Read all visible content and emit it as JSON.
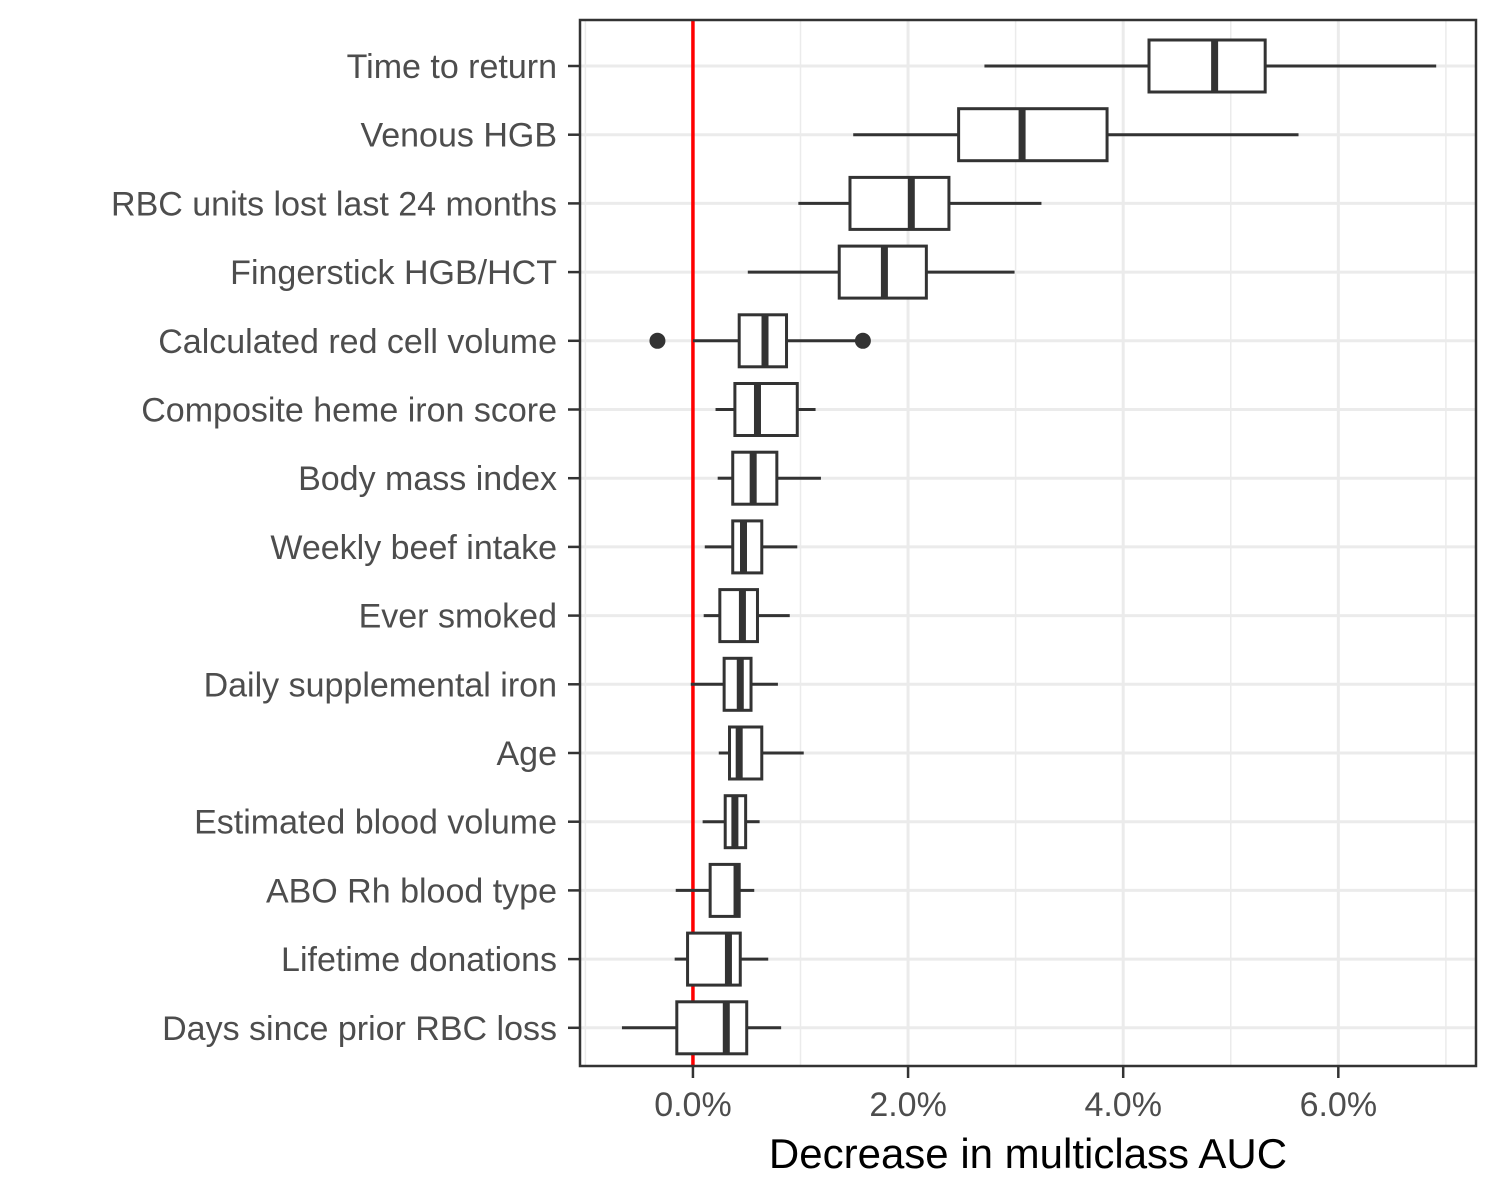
{
  "chart_data": {
    "type": "boxplot",
    "orientation": "horizontal",
    "xlabel": "Decrease in multiclass AUC",
    "ylabel": "",
    "xlim": [
      -0.0105,
      0.0728
    ],
    "x_ticks": [
      0.0,
      0.02,
      0.04,
      0.06
    ],
    "x_tick_labels": [
      "0.0%",
      "2.0%",
      "4.0%",
      "6.0%"
    ],
    "x_minor_ticks": [
      -0.01,
      0.01,
      0.03,
      0.05,
      0.07
    ],
    "reference_line": {
      "x": 0.0,
      "color": "#ff0000"
    },
    "grid": true,
    "series": [
      {
        "category": "Time to return",
        "whisker_low": 0.0271,
        "q1": 0.0424,
        "median": 0.0485,
        "q3": 0.0532,
        "whisker_high": 0.0691,
        "outliers": []
      },
      {
        "category": "Venous HGB",
        "whisker_low": 0.0149,
        "q1": 0.0247,
        "median": 0.0306,
        "q3": 0.0385,
        "whisker_high": 0.0563,
        "outliers": []
      },
      {
        "category": "RBC units lost last 24 months",
        "whisker_low": 0.0098,
        "q1": 0.0146,
        "median": 0.0203,
        "q3": 0.0238,
        "whisker_high": 0.0324,
        "outliers": []
      },
      {
        "category": "Fingerstick HGB/HCT",
        "whisker_low": 0.0051,
        "q1": 0.0136,
        "median": 0.0178,
        "q3": 0.0217,
        "whisker_high": 0.0299,
        "outliers": []
      },
      {
        "category": "Calculated red cell volume",
        "whisker_low": 0.0,
        "q1": 0.0043,
        "median": 0.0067,
        "q3": 0.0087,
        "whisker_high": 0.0158,
        "outliers": [
          -0.0033,
          0.0158
        ]
      },
      {
        "category": "Composite heme iron score",
        "whisker_low": 0.0021,
        "q1": 0.0039,
        "median": 0.006,
        "q3": 0.0097,
        "whisker_high": 0.0114,
        "outliers": []
      },
      {
        "category": "Body mass index",
        "whisker_low": 0.0023,
        "q1": 0.0037,
        "median": 0.0056,
        "q3": 0.0078,
        "whisker_high": 0.0119,
        "outliers": []
      },
      {
        "category": "Weekly beef intake",
        "whisker_low": 0.0011,
        "q1": 0.0037,
        "median": 0.0047,
        "q3": 0.0064,
        "whisker_high": 0.0097,
        "outliers": []
      },
      {
        "category": "Ever smoked",
        "whisker_low": 0.001,
        "q1": 0.0025,
        "median": 0.0046,
        "q3": 0.006,
        "whisker_high": 0.009,
        "outliers": []
      },
      {
        "category": "Daily supplemental iron",
        "whisker_low": -0.0002,
        "q1": 0.0029,
        "median": 0.0044,
        "q3": 0.0054,
        "whisker_high": 0.0079,
        "outliers": []
      },
      {
        "category": "Age",
        "whisker_low": 0.0024,
        "q1": 0.0034,
        "median": 0.0043,
        "q3": 0.0064,
        "whisker_high": 0.0103,
        "outliers": []
      },
      {
        "category": "Estimated blood volume",
        "whisker_low": 0.0009,
        "q1": 0.003,
        "median": 0.0039,
        "q3": 0.0049,
        "whisker_high": 0.0062,
        "outliers": []
      },
      {
        "category": "ABO Rh blood type",
        "whisker_low": -0.0016,
        "q1": 0.0016,
        "median": 0.0041,
        "q3": 0.0043,
        "whisker_high": 0.0057,
        "outliers": []
      },
      {
        "category": "Lifetime donations",
        "whisker_low": -0.0017,
        "q1": -0.0005,
        "median": 0.0033,
        "q3": 0.0044,
        "whisker_high": 0.007,
        "outliers": []
      },
      {
        "category": "Days since prior RBC loss",
        "whisker_low": -0.0066,
        "q1": -0.0015,
        "median": 0.0031,
        "q3": 0.005,
        "whisker_high": 0.0082,
        "outliers": []
      }
    ]
  }
}
